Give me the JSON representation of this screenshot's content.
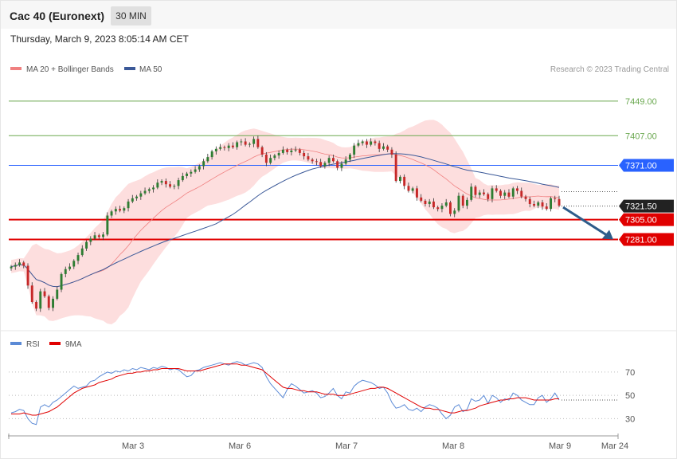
{
  "header": {
    "title": "Cac 40 (Euronext)",
    "timeframe": "30 MIN",
    "datetime": "Thursday, March 9, 2023 8:05:14 AM CET"
  },
  "legend": {
    "ma20": "MA 20 + Bollinger Bands",
    "ma50": "MA 50",
    "credit": "Research © 2023 Trading Central",
    "rsi": "RSI",
    "rsi_ma": "9MA"
  },
  "colors": {
    "ma20": "#f08080",
    "ma50": "#3b5998",
    "band_fill": "#fddede",
    "candle_up": "#2e7d32",
    "candle_down": "#c62828",
    "resistance": "#2962ff",
    "support": "#e00000",
    "target_line": "#6aa84f",
    "last_price": "#222222",
    "arrow": "#2e5c8a",
    "rsi": "#5b8ad6",
    "rsi_ma": "#e00000"
  },
  "chart_data": [
    {
      "type": "candlestick",
      "title": "Cac 40 (Euronext)",
      "interval": "30 MIN",
      "ylim": [
        7175,
        7475
      ],
      "levels": [
        {
          "value": 7449.0,
          "label": "7449.00",
          "kind": "target"
        },
        {
          "value": 7407.0,
          "label": "7407.00",
          "kind": "target"
        },
        {
          "value": 7371.0,
          "label": "7371.00",
          "kind": "resistance"
        },
        {
          "value": 7321.5,
          "label": "7321.50",
          "kind": "last"
        },
        {
          "value": 7305.0,
          "label": "7305.00",
          "kind": "support"
        },
        {
          "value": 7281.0,
          "label": "7281.00",
          "kind": "support"
        }
      ],
      "forecast_arrow": {
        "from": 7320,
        "to": 7281
      },
      "x_ticks": [
        "Mar 3",
        "Mar 6",
        "Mar 7",
        "Mar 8",
        "Mar 9",
        "Mar 24"
      ],
      "close": [
        7248,
        7250,
        7253,
        7249,
        7225,
        7205,
        7197,
        7218,
        7212,
        7198,
        7209,
        7220,
        7239,
        7245,
        7248,
        7255,
        7262,
        7270,
        7278,
        7282,
        7286,
        7284,
        7287,
        7310,
        7315,
        7318,
        7316,
        7319,
        7327,
        7331,
        7333,
        7337,
        7340,
        7342,
        7344,
        7350,
        7352,
        7348,
        7345,
        7346,
        7353,
        7358,
        7361,
        7363,
        7366,
        7370,
        7376,
        7381,
        7388,
        7391,
        7393,
        7392,
        7395,
        7393,
        7399,
        7400,
        7396,
        7397,
        7403,
        7393,
        7384,
        7374,
        7380,
        7383,
        7386,
        7390,
        7387,
        7389,
        7390,
        7386,
        7382,
        7378,
        7376,
        7375,
        7370,
        7374,
        7380,
        7376,
        7368,
        7373,
        7378,
        7384,
        7395,
        7398,
        7400,
        7396,
        7400,
        7398,
        7391,
        7394,
        7390,
        7384,
        7352,
        7357,
        7346,
        7340,
        7343,
        7332,
        7328,
        7324,
        7327,
        7320,
        7318,
        7322,
        7326,
        7312,
        7316,
        7334,
        7322,
        7329,
        7345,
        7335,
        7338,
        7336,
        7330,
        7343,
        7340,
        7334,
        7338,
        7333,
        7343,
        7340,
        7333,
        7330,
        7324,
        7322,
        7326,
        7321,
        7318,
        7331,
        7330,
        7322
      ],
      "rsi": {
        "levels": [
          70,
          50,
          30
        ],
        "ylim": [
          20,
          85
        ],
        "rsi_values": [
          35,
          36,
          38,
          37,
          30,
          26,
          25,
          40,
          42,
          40,
          44,
          46,
          49,
          52,
          55,
          58,
          56,
          57,
          58,
          62,
          63,
          66,
          68,
          70,
          69,
          71,
          70,
          72,
          71,
          73,
          72,
          74,
          73,
          72,
          74,
          73,
          75,
          74,
          72,
          73,
          72,
          69,
          66,
          67,
          71,
          72,
          74,
          75,
          76,
          77,
          78,
          77,
          76,
          78,
          79,
          78,
          76,
          77,
          78,
          77,
          74,
          66,
          60,
          56,
          52,
          48,
          55,
          60,
          58,
          55,
          52,
          53,
          54,
          52,
          48,
          49,
          52,
          56,
          50,
          47,
          53,
          52,
          58,
          61,
          63,
          62,
          61,
          59,
          56,
          57,
          52,
          44,
          39,
          40,
          42,
          38,
          37,
          39,
          36,
          40,
          42,
          41,
          39,
          34,
          30,
          33,
          40,
          42,
          36,
          38,
          47,
          45,
          46,
          50,
          43,
          50,
          48,
          44,
          47,
          46,
          52,
          50,
          46,
          44,
          42,
          42,
          48,
          50,
          44,
          47,
          52,
          46
        ],
        "ma_values": [
          34,
          34,
          34,
          35,
          34,
          33,
          33,
          34,
          35,
          36,
          38,
          40,
          43,
          46,
          49,
          52,
          54,
          56,
          57,
          58,
          59,
          61,
          62,
          63,
          64,
          66,
          67,
          68,
          69,
          69,
          70,
          70,
          71,
          71,
          72,
          72,
          73,
          73,
          73,
          73,
          73,
          72,
          71,
          71,
          71,
          71,
          72,
          73,
          74,
          75,
          76,
          77,
          77,
          77,
          77,
          76,
          76,
          75,
          74,
          73,
          72,
          69,
          66,
          63,
          60,
          57,
          56,
          56,
          55,
          54,
          54,
          53,
          53,
          53,
          52,
          51,
          51,
          51,
          50,
          50,
          50,
          51,
          52,
          53,
          54,
          55,
          56,
          56,
          57,
          57,
          56,
          54,
          52,
          50,
          48,
          46,
          44,
          42,
          40,
          39,
          39,
          38,
          38,
          37,
          36,
          35,
          35,
          36,
          37,
          37,
          38,
          39,
          41,
          42,
          43,
          44,
          45,
          46,
          46,
          47,
          47,
          48,
          48,
          48,
          47,
          46,
          46,
          46,
          46,
          46,
          47,
          47
        ]
      }
    }
  ]
}
